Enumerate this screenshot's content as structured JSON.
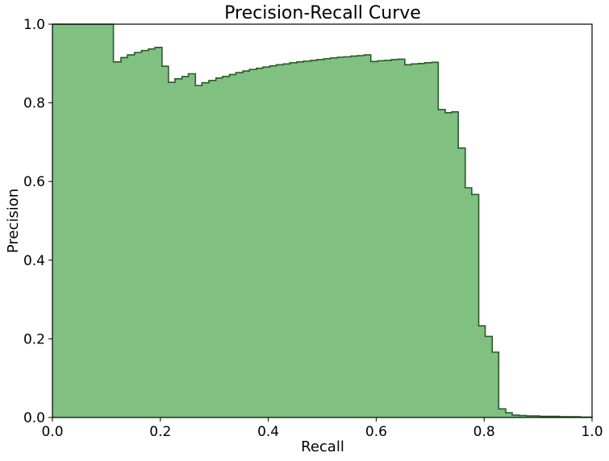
{
  "chart_data": {
    "type": "area",
    "title": "Precision-Recall Curve",
    "xlabel": "Recall",
    "ylabel": "Precision",
    "xlim": [
      0.0,
      1.0
    ],
    "ylim": [
      0.0,
      1.0
    ],
    "xticks": [
      "0.0",
      "0.2",
      "0.4",
      "0.6",
      "0.8",
      "1.0"
    ],
    "yticks": [
      "0.0",
      "0.2",
      "0.4",
      "0.6",
      "0.8",
      "1.0"
    ],
    "grid": false,
    "step": "post",
    "fill_color": "#80c080",
    "line_color": "#2a5a2a",
    "series": [
      {
        "recall": [
          0.0,
          0.113,
          0.127,
          0.139,
          0.152,
          0.165,
          0.178,
          0.19,
          0.203,
          0.215,
          0.227,
          0.24,
          0.252,
          0.265,
          0.277,
          0.29,
          0.303,
          0.315,
          0.328,
          0.34,
          0.353,
          0.365,
          0.378,
          0.39,
          0.403,
          0.415,
          0.428,
          0.44,
          0.453,
          0.465,
          0.478,
          0.49,
          0.503,
          0.515,
          0.528,
          0.54,
          0.553,
          0.565,
          0.578,
          0.59,
          0.603,
          0.615,
          0.628,
          0.64,
          0.653,
          0.665,
          0.678,
          0.69,
          0.703,
          0.715,
          0.728,
          0.74,
          0.752,
          0.765,
          0.777,
          0.79,
          0.802,
          0.815,
          0.827,
          0.84,
          0.852,
          0.865,
          0.878,
          0.89,
          0.903,
          0.915,
          0.928,
          0.94,
          0.953,
          0.965,
          0.978,
          0.99,
          1.0
        ],
        "precision": [
          1.0,
          0.904,
          0.915,
          0.922,
          0.928,
          0.933,
          0.937,
          0.941,
          0.893,
          0.852,
          0.861,
          0.867,
          0.874,
          0.844,
          0.851,
          0.857,
          0.863,
          0.867,
          0.872,
          0.877,
          0.881,
          0.885,
          0.888,
          0.891,
          0.894,
          0.897,
          0.899,
          0.902,
          0.904,
          0.906,
          0.908,
          0.91,
          0.912,
          0.914,
          0.916,
          0.917,
          0.919,
          0.92,
          0.922,
          0.905,
          0.907,
          0.908,
          0.91,
          0.911,
          0.897,
          0.899,
          0.9,
          0.902,
          0.903,
          0.783,
          0.775,
          0.777,
          0.685,
          0.584,
          0.567,
          0.233,
          0.206,
          0.166,
          0.022,
          0.012,
          0.006,
          0.005,
          0.004,
          0.004,
          0.003,
          0.003,
          0.003,
          0.002,
          0.002,
          0.002,
          0.001,
          0.001,
          0.0
        ]
      }
    ]
  }
}
